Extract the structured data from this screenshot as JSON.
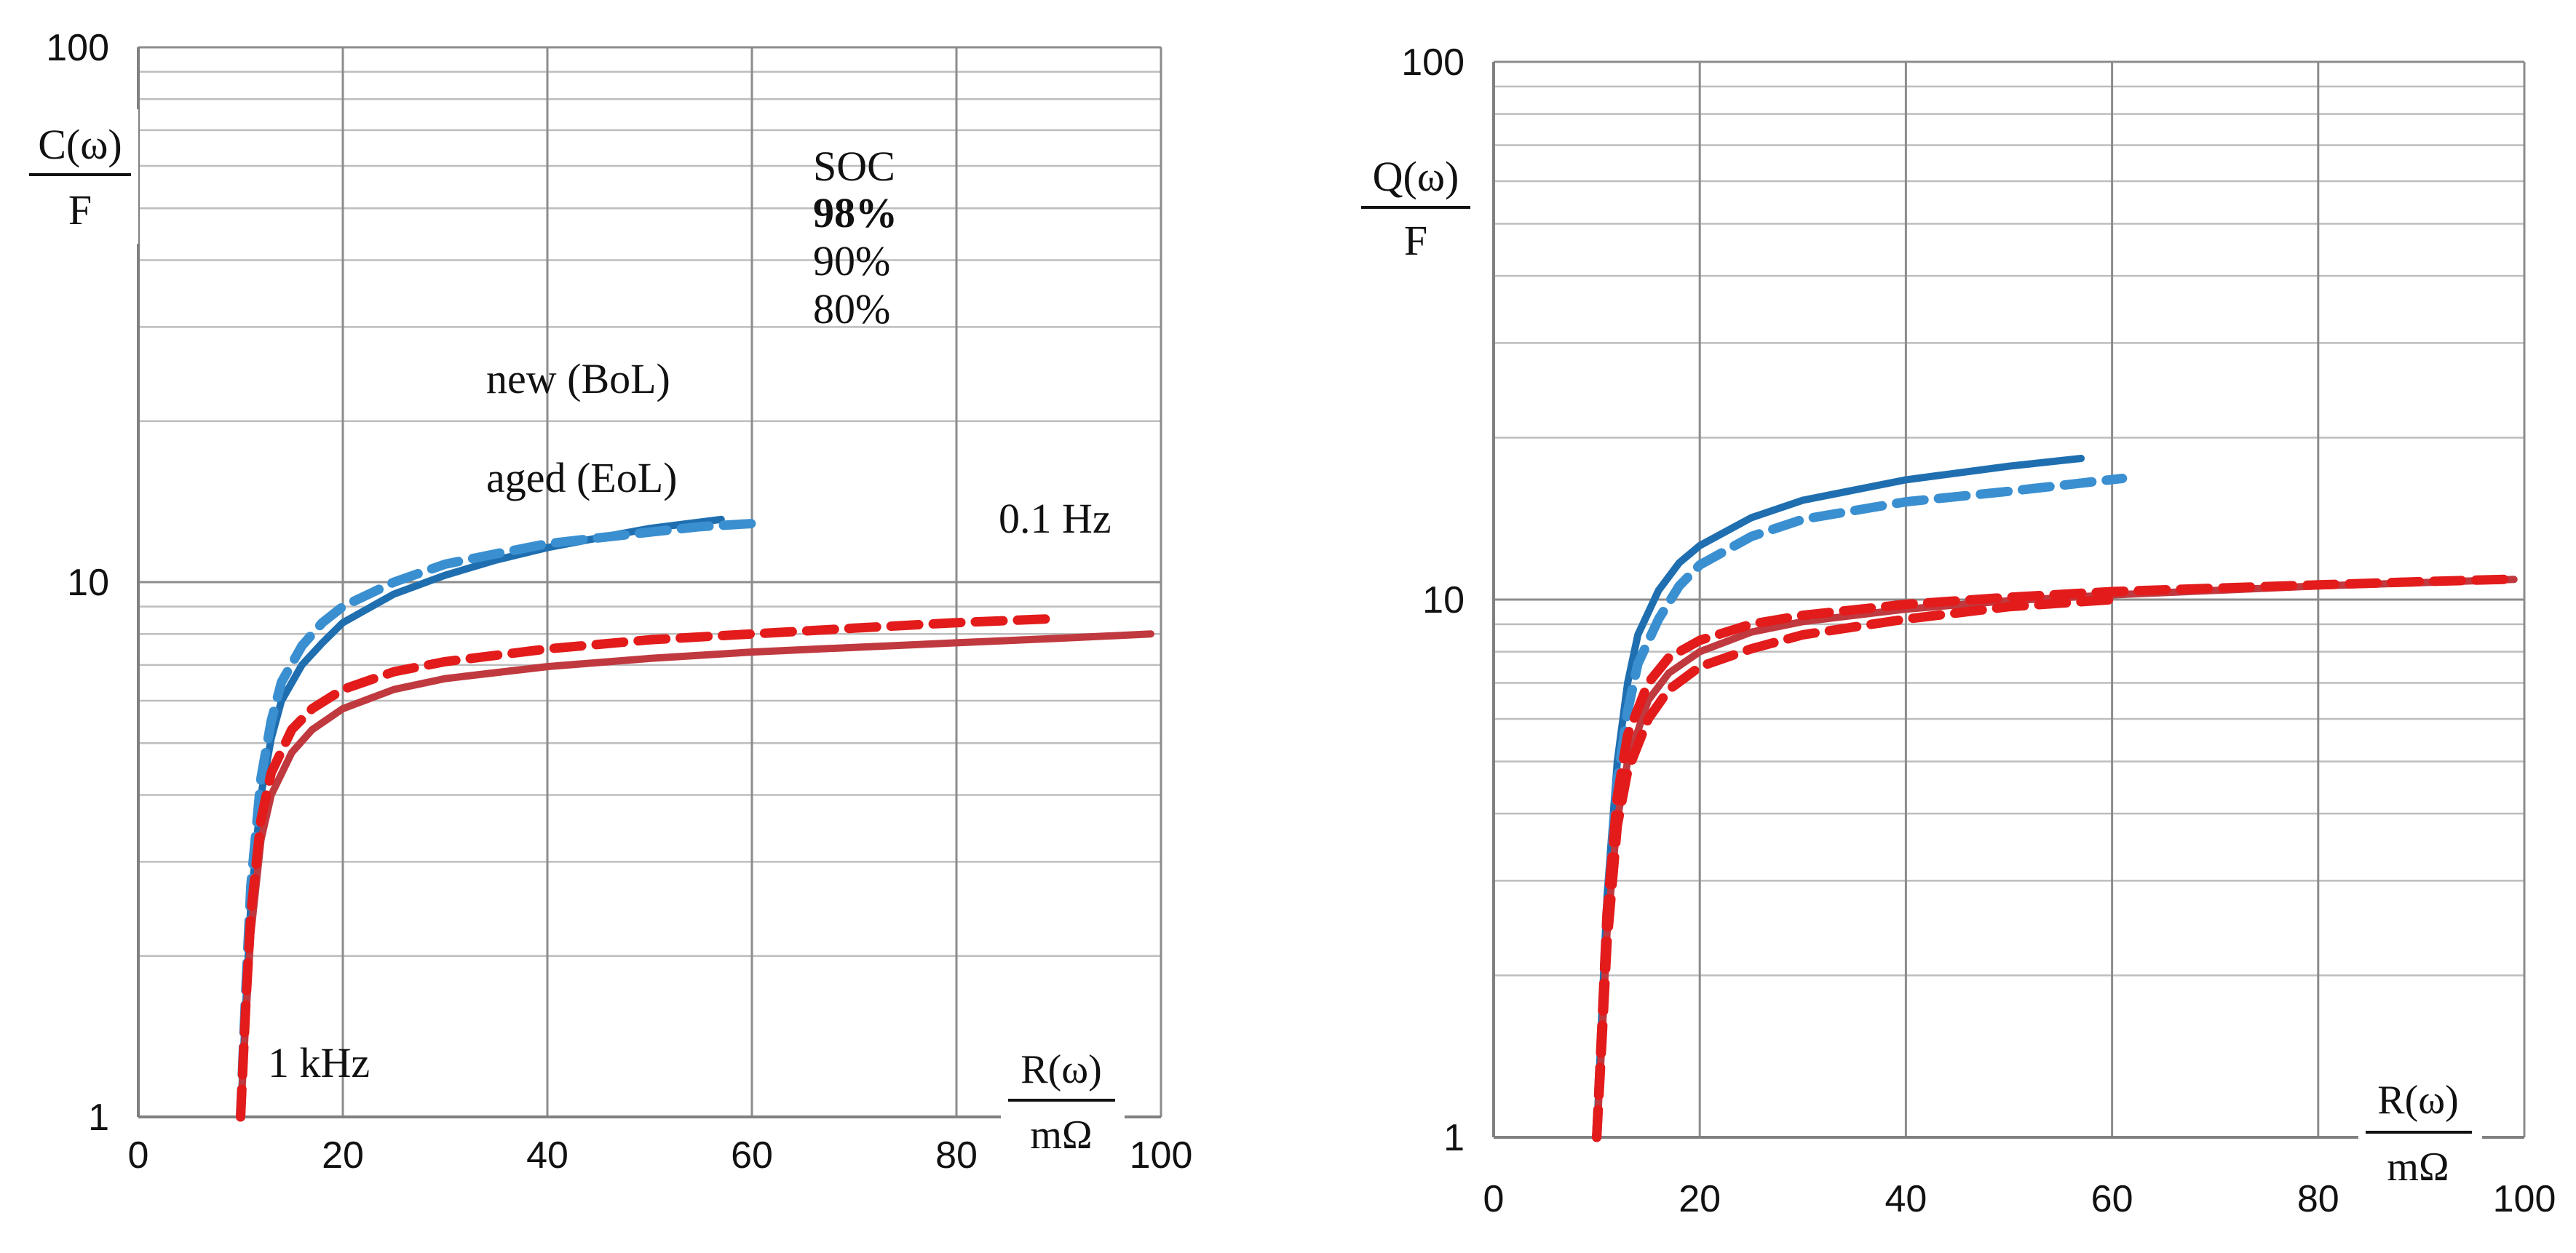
{
  "colors": {
    "new": "#1f6fb0",
    "new_light": "#3a8fd0",
    "aged_red": "#e31b1b",
    "aged_dark": "#c0393f",
    "annotation_blue": "#0000ff",
    "annotation_red": "#ff0000"
  },
  "chart_data": [
    {
      "id": "left",
      "type": "line",
      "xscale": "linear",
      "yscale": "log",
      "xlim": [
        0,
        100
      ],
      "ylim": [
        1,
        100
      ],
      "xticks": [
        "0",
        "20",
        "40",
        "60",
        "80",
        "100"
      ],
      "yticks": [
        "1",
        "10",
        "100"
      ],
      "grid": true,
      "ylabel_num": "C(ω)",
      "ylabel_den": "F",
      "xlabel_num": "R(ω)",
      "xlabel_den": "mΩ",
      "annotations": {
        "soc_title": "SOC",
        "soc_98": "98%",
        "soc_90": "90%",
        "soc_80": "80%",
        "new": "new (BoL)",
        "aged": "aged (EoL)",
        "freq_low": "0.1 Hz",
        "freq_high": "1 kHz"
      },
      "series": [
        {
          "name": "new (BoL) 98%",
          "style": "solid",
          "color": "#1f6fb0",
          "x": [
            10,
            10.5,
            11,
            12,
            13,
            14,
            16,
            18,
            20,
            25,
            30,
            35,
            40,
            45,
            50,
            57
          ],
          "y": [
            1.0,
            1.6,
            2.5,
            4.0,
            5.1,
            6.0,
            7.0,
            7.7,
            8.4,
            9.5,
            10.3,
            11.0,
            11.6,
            12.1,
            12.6,
            13.1
          ]
        },
        {
          "name": "new (BoL) 90%",
          "style": "dashed",
          "color": "#3a8fd0",
          "x": [
            10,
            10.5,
            11,
            12,
            13,
            14,
            16,
            18,
            20,
            25,
            30,
            35,
            40,
            45,
            50,
            55,
            61
          ],
          "y": [
            1.0,
            1.7,
            2.7,
            4.3,
            5.5,
            6.5,
            7.6,
            8.4,
            9.0,
            10.0,
            10.8,
            11.3,
            11.8,
            12.1,
            12.4,
            12.7,
            12.9
          ]
        },
        {
          "name": "aged (EoL) 98%",
          "style": "solid",
          "color": "#c0393f",
          "x": [
            10,
            10.5,
            11,
            12,
            13,
            15,
            17,
            20,
            25,
            30,
            40,
            50,
            60,
            70,
            80,
            90,
            99
          ],
          "y": [
            1.0,
            1.5,
            2.2,
            3.3,
            4.0,
            4.8,
            5.3,
            5.8,
            6.3,
            6.6,
            6.95,
            7.2,
            7.4,
            7.55,
            7.7,
            7.85,
            8.0
          ]
        },
        {
          "name": "aged (EoL) 90%",
          "style": "dashed",
          "color": "#e31b1b",
          "x": [
            10,
            10.5,
            11,
            12,
            13,
            15,
            17,
            20,
            25,
            30,
            40,
            50,
            60,
            70,
            80,
            90
          ],
          "y": [
            1.0,
            1.6,
            2.4,
            3.6,
            4.4,
            5.3,
            5.8,
            6.3,
            6.8,
            7.1,
            7.5,
            7.8,
            8.0,
            8.2,
            8.4,
            8.55
          ]
        }
      ]
    },
    {
      "id": "right",
      "type": "line",
      "xscale": "linear",
      "yscale": "log",
      "xlim": [
        0,
        100
      ],
      "ylim": [
        1,
        100
      ],
      "xticks": [
        "0",
        "20",
        "40",
        "60",
        "80",
        "100"
      ],
      "yticks": [
        "1",
        "10",
        "100"
      ],
      "grid": true,
      "ylabel_num": "Q(ω)",
      "ylabel_den": "F",
      "xlabel_num": "R(ω)",
      "xlabel_den": "mΩ",
      "series": [
        {
          "name": "new (BoL) 98%",
          "style": "solid",
          "color": "#1f6fb0",
          "x": [
            10,
            10.5,
            11,
            12,
            13,
            14,
            16,
            18,
            20,
            25,
            30,
            40,
            50,
            57
          ],
          "y": [
            1.0,
            1.7,
            2.8,
            5.0,
            7.0,
            8.6,
            10.4,
            11.7,
            12.6,
            14.2,
            15.3,
            16.7,
            17.7,
            18.3
          ]
        },
        {
          "name": "new (BoL) 90%",
          "style": "dashed",
          "color": "#3a8fd0",
          "x": [
            10,
            10.5,
            11,
            12,
            13,
            14,
            16,
            18,
            20,
            25,
            30,
            40,
            50,
            61
          ],
          "y": [
            1.0,
            1.6,
            2.6,
            4.6,
            6.2,
            7.6,
            9.2,
            10.6,
            11.6,
            13.1,
            14.1,
            15.2,
            15.9,
            16.8
          ]
        },
        {
          "name": "aged (EoL) 98%",
          "style": "solid",
          "color": "#c0393f",
          "x": [
            10,
            10.5,
            11,
            12,
            13,
            15,
            17,
            20,
            25,
            30,
            40,
            50,
            60,
            70,
            80,
            90,
            99
          ],
          "y": [
            1.0,
            1.5,
            2.4,
            3.9,
            5.0,
            6.5,
            7.3,
            8.0,
            8.7,
            9.1,
            9.6,
            9.95,
            10.2,
            10.4,
            10.6,
            10.75,
            10.9
          ]
        },
        {
          "name": "aged (EoL) 90%",
          "style": "dashed",
          "color": "#e31b1b",
          "x": [
            10,
            10.5,
            11,
            12,
            13,
            15,
            17,
            20,
            25,
            30,
            40,
            50,
            60,
            70,
            80,
            90,
            98
          ],
          "y": [
            1.0,
            1.6,
            2.6,
            4.3,
            5.6,
            7.0,
            7.8,
            8.4,
            9.0,
            9.35,
            9.8,
            10.1,
            10.35,
            10.5,
            10.65,
            10.8,
            10.9
          ]
        },
        {
          "name": "aged (EoL) 80%",
          "style": "dashed",
          "color": "#e31b1b",
          "x": [
            10,
            10.5,
            11,
            12,
            13,
            15,
            17,
            20,
            25,
            30,
            40,
            50,
            60
          ],
          "y": [
            1.0,
            1.5,
            2.3,
            3.8,
            4.8,
            6.0,
            6.8,
            7.5,
            8.1,
            8.6,
            9.2,
            9.7,
            10.0
          ]
        }
      ]
    }
  ]
}
